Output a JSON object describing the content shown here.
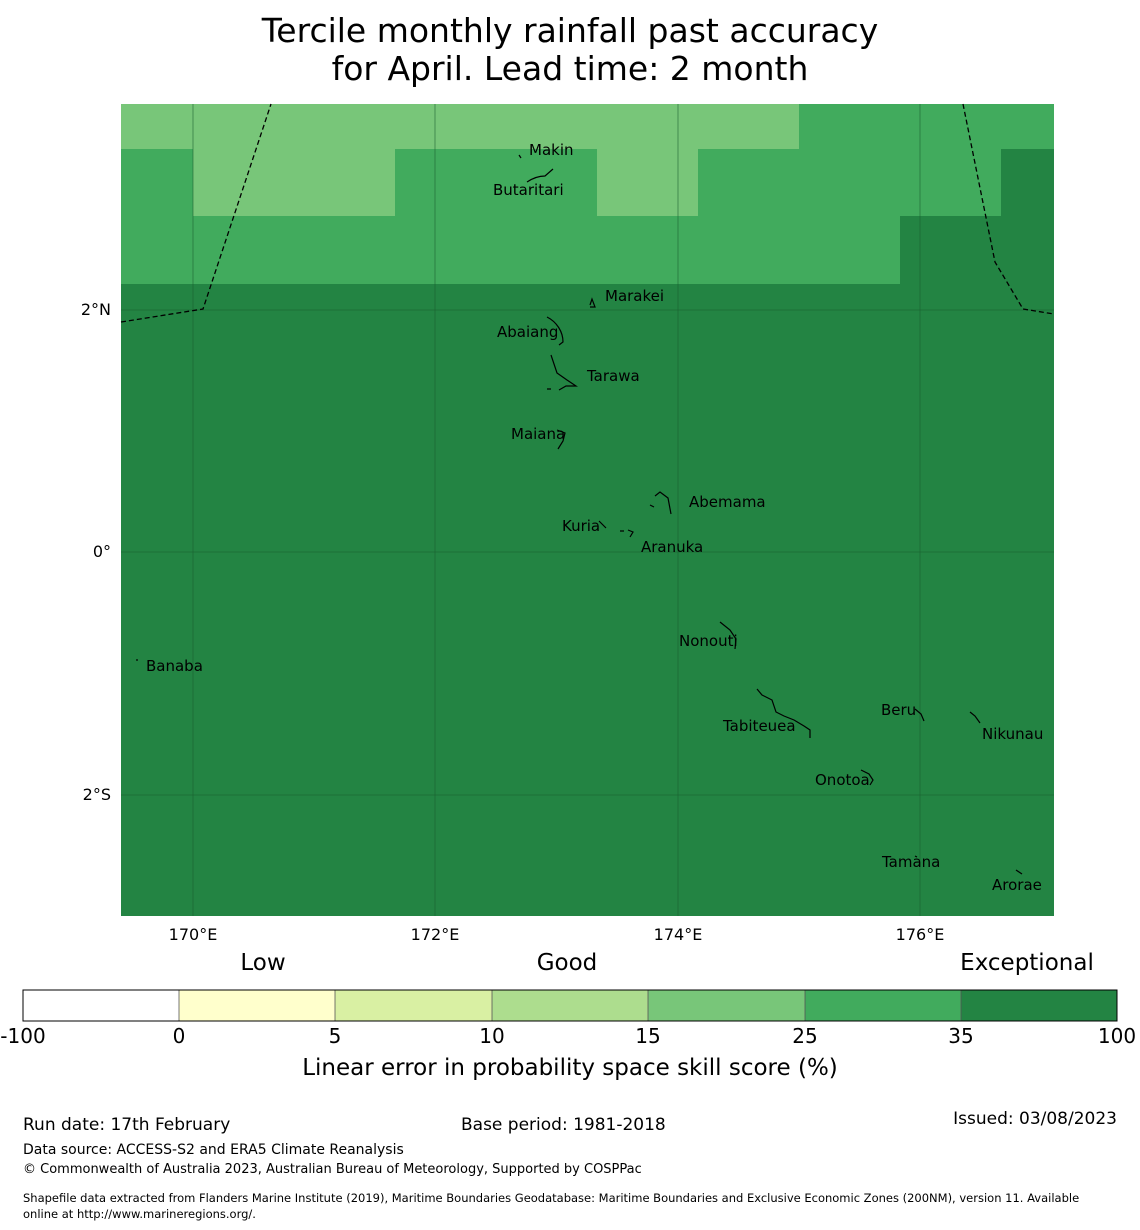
{
  "title": {
    "line1": "Tercile monthly rainfall past accuracy",
    "line2": "for April. Lead time: 2 month"
  },
  "map": {
    "lat_range": [
      -3.0,
      3.7
    ],
    "lon_range": [
      169.4,
      177.1
    ],
    "lat_ticks": [
      {
        "value": 2,
        "label": "2°N"
      },
      {
        "value": 0,
        "label": "0°"
      },
      {
        "value": -2,
        "label": "2°S"
      }
    ],
    "lon_ticks": [
      {
        "value": 170,
        "label": "170°E"
      },
      {
        "value": 172,
        "label": "172°E"
      },
      {
        "value": 174,
        "label": "174°E"
      },
      {
        "value": 176,
        "label": "176°E"
      }
    ],
    "islands": [
      {
        "name": "Makin",
        "lon": 173.0,
        "lat": 3.3
      },
      {
        "name": "Butaritari",
        "lon": 172.8,
        "lat": 3.1
      },
      {
        "name": "Marakei",
        "lon": 173.3,
        "lat": 2.0
      },
      {
        "name": "Abaiang",
        "lon": 173.0,
        "lat": 1.8
      },
      {
        "name": "Tarawa",
        "lon": 173.1,
        "lat": 1.4
      },
      {
        "name": "Maiana",
        "lon": 173.0,
        "lat": 0.9
      },
      {
        "name": "Abemama",
        "lon": 173.9,
        "lat": 0.4
      },
      {
        "name": "Kuria",
        "lon": 173.4,
        "lat": 0.2
      },
      {
        "name": "Aranuka",
        "lon": 173.6,
        "lat": 0.15
      },
      {
        "name": "Nonouti",
        "lon": 174.4,
        "lat": -0.7
      },
      {
        "name": "Banaba",
        "lon": 169.5,
        "lat": -0.9
      },
      {
        "name": "Tabiteuea",
        "lon": 174.9,
        "lat": -1.4
      },
      {
        "name": "Beru",
        "lon": 176.0,
        "lat": -1.35
      },
      {
        "name": "Nikunau",
        "lon": 176.5,
        "lat": -1.4
      },
      {
        "name": "Onotoa",
        "lon": 175.6,
        "lat": -1.8
      },
      {
        "name": "Tamana",
        "lon": 176.0,
        "lat": -2.5
      },
      {
        "name": "Arorae",
        "lon": 176.8,
        "lat": -2.65
      }
    ]
  },
  "colorbar": {
    "category_labels": [
      "Low",
      "Good",
      "Exceptional"
    ],
    "tick_labels": [
      "-100",
      "0",
      "5",
      "10",
      "15",
      "25",
      "35",
      "100"
    ],
    "colors": [
      "#ffffff",
      "#ffffcc",
      "#d9f0a3",
      "#addd8e",
      "#78c679",
      "#41ab5d",
      "#238443"
    ],
    "label": "Linear error in probability space skill score (%)"
  },
  "footer": {
    "run_date": "Run date: 17th February",
    "base_period": "Base period: 1981-2018",
    "issued": "Issued: 03/08/2023",
    "data_source": "Data source: ACCESS-S2 and ERA5 Climate Reanalysis",
    "copyright": "© Commonwealth of Australia 2023, Australian Bureau of Meteorology, Supported by COSPPac",
    "shapefile_line1": "Shapefile data extracted from Flanders Marine Institute (2019), Maritime Boundaries Geodatabase: Maritime Boundaries and Exclusive Economic Zones (200NM), version 11. Available",
    "shapefile_line2": "online at http://www.marineregions.org/."
  }
}
